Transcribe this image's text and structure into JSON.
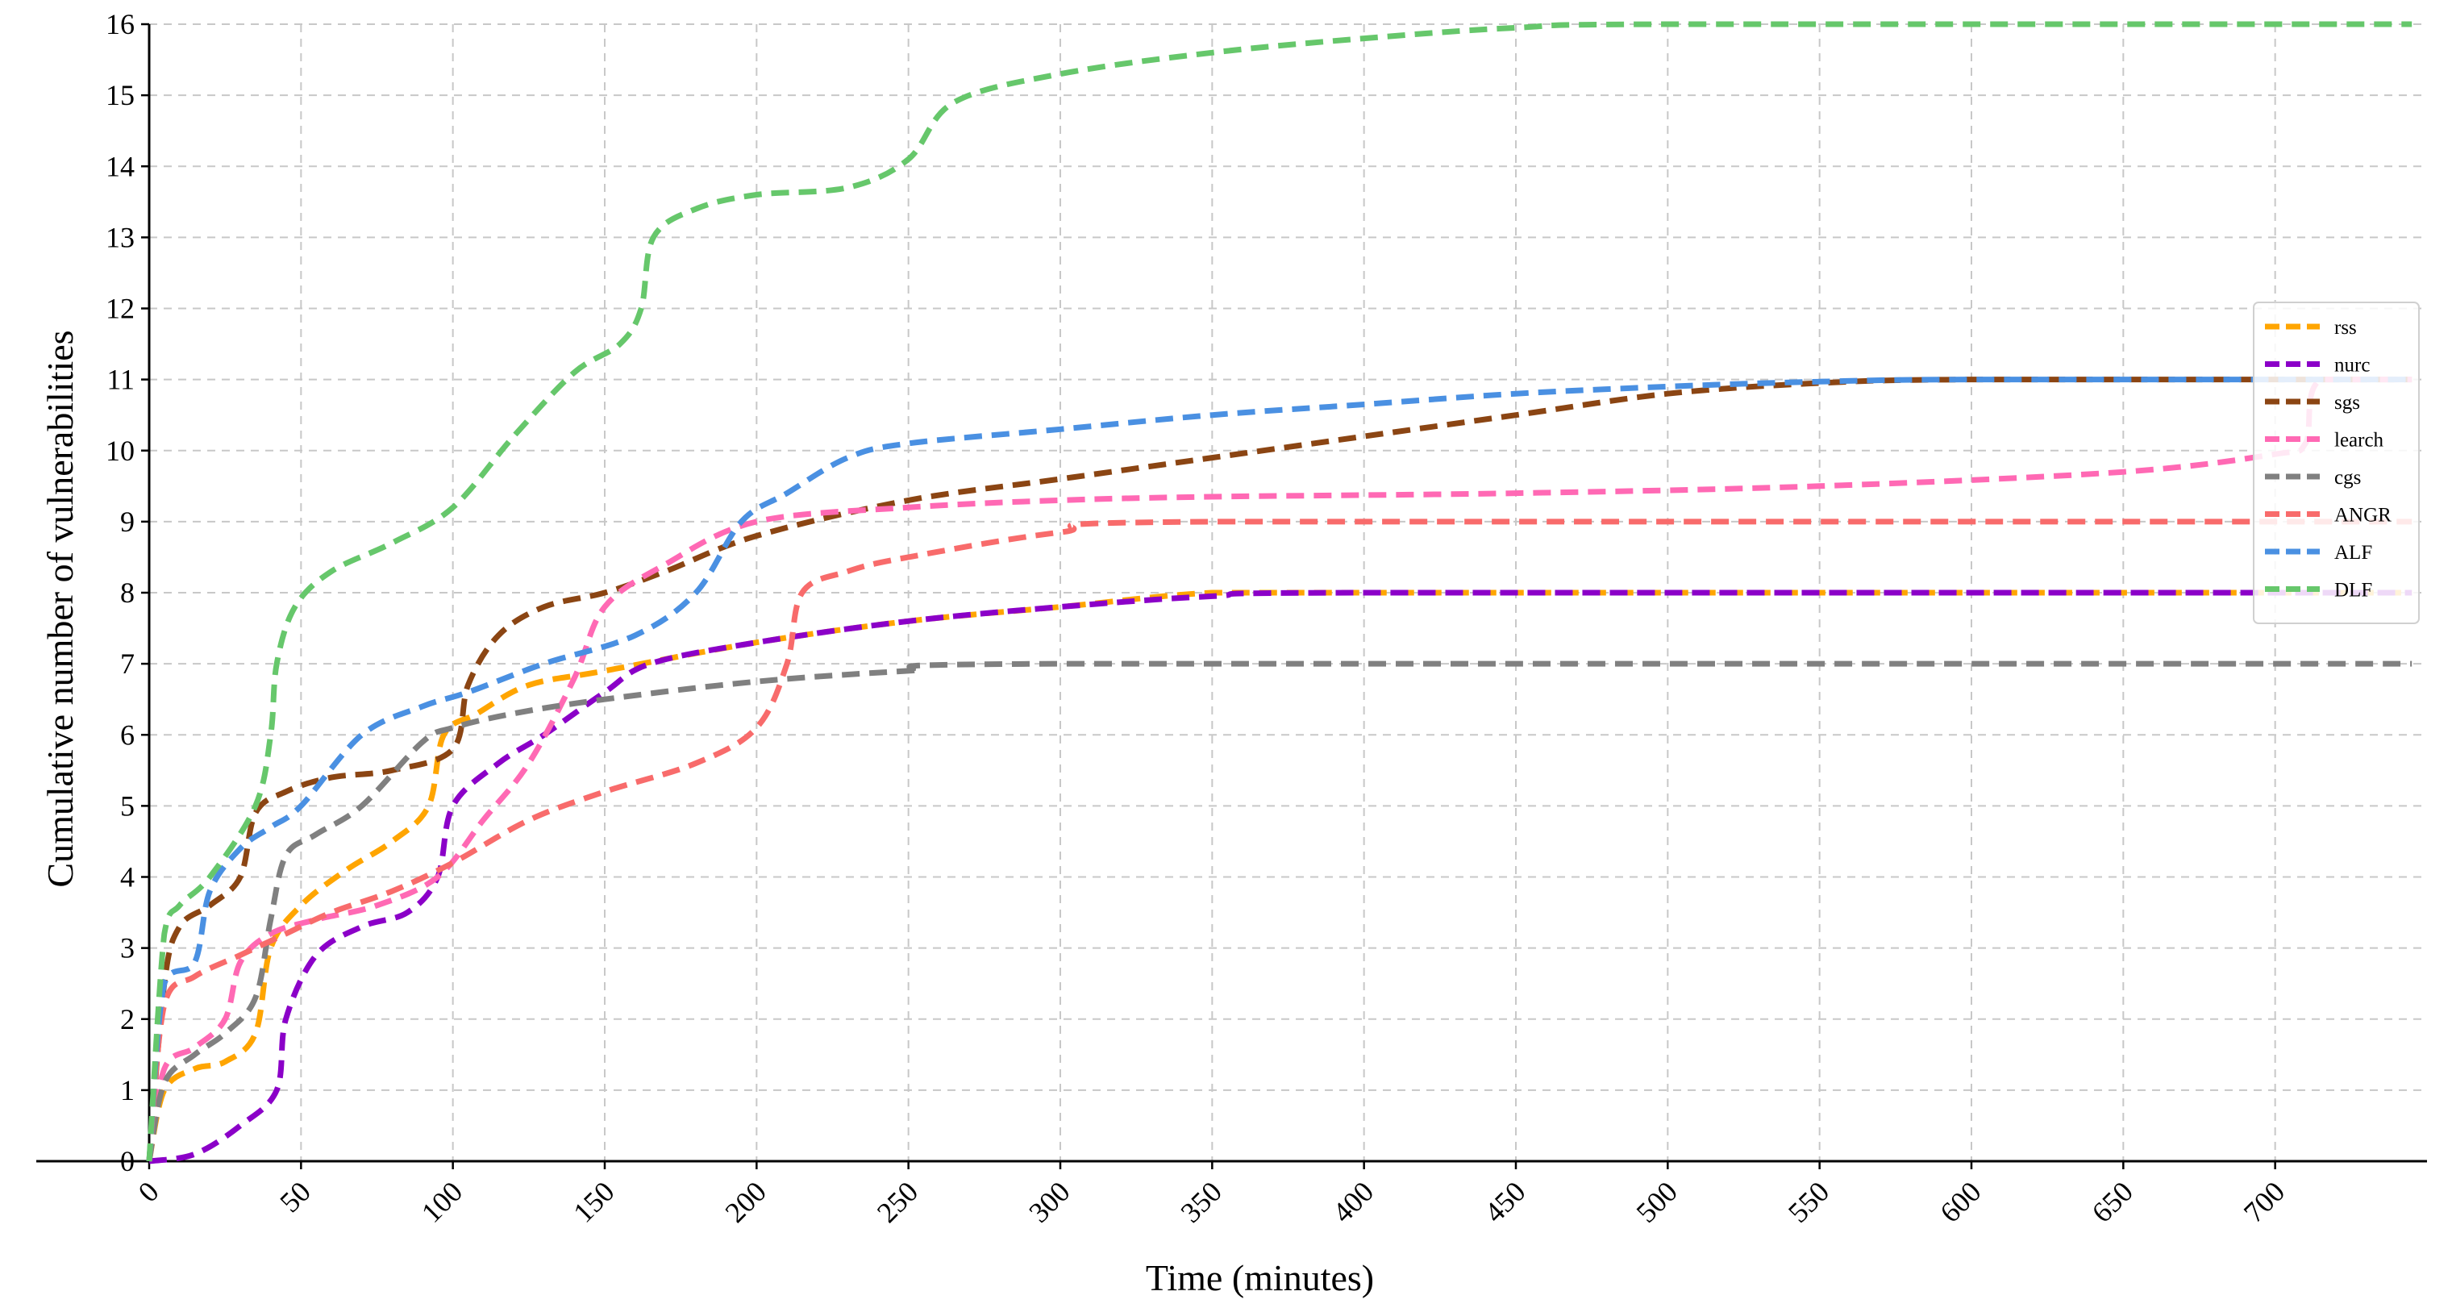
{
  "chart_data": {
    "type": "line",
    "title": "",
    "xlabel": "Time (minutes)",
    "ylabel": "Cumulative number of vulnerabilities",
    "xlim": [
      0,
      750
    ],
    "ylim": [
      0,
      16
    ],
    "xticks": [
      0,
      50,
      100,
      150,
      200,
      250,
      300,
      350,
      400,
      450,
      500,
      550,
      600,
      650,
      700
    ],
    "yticks": [
      0,
      1,
      2,
      3,
      4,
      5,
      6,
      7,
      8,
      9,
      10,
      11,
      12,
      13,
      14,
      15,
      16
    ],
    "grid": true,
    "legend_position": "right",
    "series": [
      {
        "name": "rss",
        "color": "#FFA500",
        "points": [
          [
            0,
            0
          ],
          [
            5,
            1
          ],
          [
            15,
            1.3
          ],
          [
            25,
            1.4
          ],
          [
            35,
            1.8
          ],
          [
            40,
            3
          ],
          [
            50,
            3.6
          ],
          [
            65,
            4.1
          ],
          [
            80,
            4.5
          ],
          [
            92,
            5
          ],
          [
            97,
            6
          ],
          [
            108,
            6.3
          ],
          [
            125,
            6.7
          ],
          [
            150,
            6.9
          ],
          [
            200,
            7.3
          ],
          [
            250,
            7.6
          ],
          [
            300,
            7.8
          ],
          [
            350,
            8
          ],
          [
            400,
            8
          ],
          [
            745,
            8
          ]
        ]
      },
      {
        "name": "nurc",
        "color": "#8B00C8",
        "points": [
          [
            0,
            0
          ],
          [
            15,
            0.1
          ],
          [
            30,
            0.5
          ],
          [
            42,
            1
          ],
          [
            45,
            2
          ],
          [
            55,
            2.9
          ],
          [
            70,
            3.3
          ],
          [
            85,
            3.5
          ],
          [
            95,
            4
          ],
          [
            100,
            5
          ],
          [
            115,
            5.6
          ],
          [
            130,
            6
          ],
          [
            150,
            6.6
          ],
          [
            165,
            7
          ],
          [
            200,
            7.3
          ],
          [
            250,
            7.6
          ],
          [
            300,
            7.8
          ],
          [
            350,
            7.95
          ],
          [
            400,
            8
          ],
          [
            745,
            8
          ]
        ]
      },
      {
        "name": "sgs",
        "color": "#8B4513",
        "points": [
          [
            0,
            0
          ],
          [
            5,
            2.5
          ],
          [
            10,
            3.3
          ],
          [
            20,
            3.6
          ],
          [
            30,
            4
          ],
          [
            35,
            4.9
          ],
          [
            45,
            5.2
          ],
          [
            60,
            5.4
          ],
          [
            80,
            5.5
          ],
          [
            100,
            5.8
          ],
          [
            105,
            6.7
          ],
          [
            115,
            7.4
          ],
          [
            130,
            7.8
          ],
          [
            150,
            8
          ],
          [
            170,
            8.3
          ],
          [
            200,
            8.8
          ],
          [
            250,
            9.3
          ],
          [
            300,
            9.6
          ],
          [
            350,
            9.9
          ],
          [
            400,
            10.2
          ],
          [
            450,
            10.5
          ],
          [
            500,
            10.8
          ],
          [
            550,
            10.95
          ],
          [
            600,
            11
          ],
          [
            745,
            11
          ]
        ]
      },
      {
        "name": "learch",
        "color": "#FF69B4",
        "points": [
          [
            0,
            0
          ],
          [
            5,
            1.3
          ],
          [
            15,
            1.6
          ],
          [
            25,
            2
          ],
          [
            30,
            2.8
          ],
          [
            40,
            3.2
          ],
          [
            55,
            3.4
          ],
          [
            75,
            3.6
          ],
          [
            95,
            4
          ],
          [
            110,
            4.8
          ],
          [
            125,
            5.6
          ],
          [
            140,
            6.8
          ],
          [
            150,
            7.8
          ],
          [
            170,
            8.4
          ],
          [
            200,
            9
          ],
          [
            250,
            9.2
          ],
          [
            300,
            9.3
          ],
          [
            350,
            9.35
          ],
          [
            450,
            9.4
          ],
          [
            550,
            9.5
          ],
          [
            650,
            9.7
          ],
          [
            700,
            9.95
          ],
          [
            710,
            10.1
          ],
          [
            715,
            11
          ],
          [
            745,
            11
          ]
        ]
      },
      {
        "name": "cgs",
        "color": "#808080",
        "points": [
          [
            0,
            0
          ],
          [
            5,
            1.1
          ],
          [
            15,
            1.5
          ],
          [
            25,
            1.8
          ],
          [
            35,
            2.3
          ],
          [
            40,
            3.4
          ],
          [
            45,
            4.3
          ],
          [
            55,
            4.6
          ],
          [
            70,
            5
          ],
          [
            90,
            5.9
          ],
          [
            100,
            6.1
          ],
          [
            120,
            6.3
          ],
          [
            150,
            6.5
          ],
          [
            200,
            6.75
          ],
          [
            250,
            6.9
          ],
          [
            300,
            7
          ],
          [
            745,
            7
          ]
        ]
      },
      {
        "name": "ANGR",
        "color": "#F86B6B",
        "points": [
          [
            0,
            0
          ],
          [
            5,
            2.2
          ],
          [
            15,
            2.6
          ],
          [
            30,
            2.9
          ],
          [
            45,
            3.2
          ],
          [
            60,
            3.5
          ],
          [
            80,
            3.8
          ],
          [
            100,
            4.2
          ],
          [
            125,
            4.8
          ],
          [
            150,
            5.2
          ],
          [
            180,
            5.6
          ],
          [
            200,
            6.1
          ],
          [
            210,
            7
          ],
          [
            215,
            8
          ],
          [
            230,
            8.3
          ],
          [
            250,
            8.5
          ],
          [
            300,
            8.85
          ],
          [
            350,
            9
          ],
          [
            745,
            9
          ]
        ]
      },
      {
        "name": "ALF",
        "color": "#4A90E2",
        "points": [
          [
            0,
            0
          ],
          [
            5,
            2.5
          ],
          [
            15,
            2.8
          ],
          [
            20,
            3.8
          ],
          [
            30,
            4.4
          ],
          [
            40,
            4.7
          ],
          [
            50,
            5
          ],
          [
            70,
            6
          ],
          [
            90,
            6.4
          ],
          [
            105,
            6.6
          ],
          [
            130,
            7
          ],
          [
            160,
            7.4
          ],
          [
            180,
            8
          ],
          [
            195,
            9
          ],
          [
            210,
            9.4
          ],
          [
            230,
            9.9
          ],
          [
            250,
            10.1
          ],
          [
            300,
            10.3
          ],
          [
            350,
            10.5
          ],
          [
            400,
            10.65
          ],
          [
            450,
            10.8
          ],
          [
            500,
            10.9
          ],
          [
            550,
            10.97
          ],
          [
            600,
            11
          ],
          [
            745,
            11
          ]
        ]
      },
      {
        "name": "DLF",
        "color": "#66C76B",
        "points": [
          [
            0,
            0
          ],
          [
            5,
            3.2
          ],
          [
            10,
            3.6
          ],
          [
            20,
            4
          ],
          [
            35,
            5
          ],
          [
            40,
            6
          ],
          [
            42,
            7
          ],
          [
            48,
            7.8
          ],
          [
            60,
            8.3
          ],
          [
            80,
            8.7
          ],
          [
            100,
            9.2
          ],
          [
            120,
            10.2
          ],
          [
            140,
            11.1
          ],
          [
            155,
            11.5
          ],
          [
            162,
            12
          ],
          [
            166,
            13
          ],
          [
            180,
            13.4
          ],
          [
            200,
            13.6
          ],
          [
            230,
            13.7
          ],
          [
            250,
            14.1
          ],
          [
            265,
            14.9
          ],
          [
            300,
            15.3
          ],
          [
            350,
            15.6
          ],
          [
            400,
            15.8
          ],
          [
            450,
            15.95
          ],
          [
            500,
            16
          ],
          [
            745,
            16
          ]
        ]
      }
    ]
  }
}
